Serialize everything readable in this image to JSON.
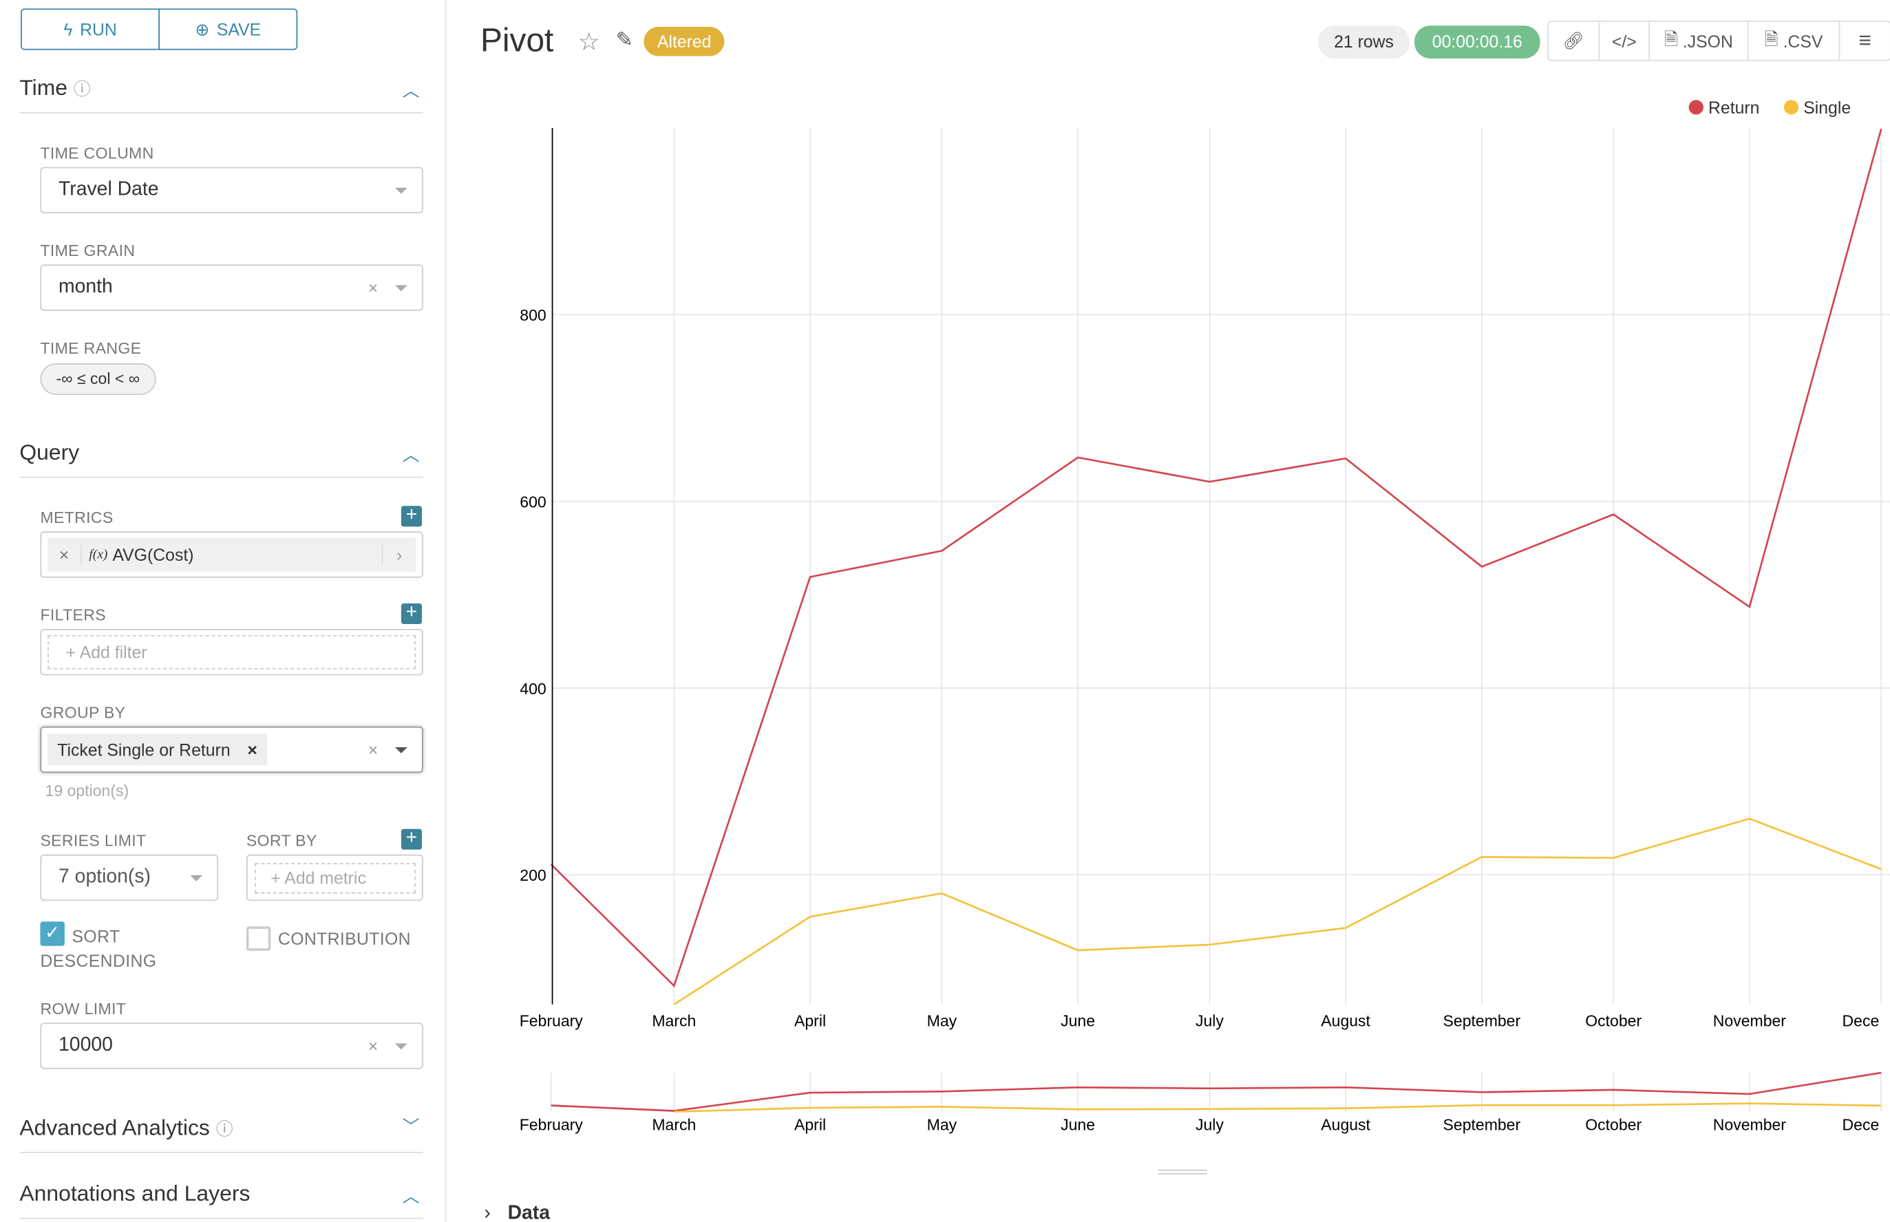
{
  "sidebar": {
    "run_label": "RUN",
    "save_label": "SAVE",
    "time": {
      "title": "Time",
      "time_column_label": "TIME COLUMN",
      "time_column_value": "Travel Date",
      "time_grain_label": "TIME GRAIN",
      "time_grain_value": "month",
      "time_range_label": "TIME RANGE",
      "time_range_value": "-∞ ≤ col < ∞"
    },
    "query": {
      "title": "Query",
      "metrics_label": "METRICS",
      "metric_fn": "f(x)",
      "metric_value": "AVG(Cost)",
      "filters_label": "FILTERS",
      "add_filter": "Add filter",
      "group_by_label": "GROUP BY",
      "group_by_tag": "Ticket Single or Return",
      "group_by_hint": "19 option(s)",
      "series_limit_label": "SERIES LIMIT",
      "series_limit_value": "7 option(s)",
      "sort_by_label": "SORT BY",
      "add_metric": "Add metric",
      "sort_desc_label": "SORT DESCENDING",
      "sort_desc_checked": true,
      "contribution_label": "CONTRIBUTION",
      "contribution_checked": false,
      "row_limit_label": "ROW LIMIT",
      "row_limit_value": "10000"
    },
    "advanced_title": "Advanced Analytics",
    "annotations_title": "Annotations and Layers"
  },
  "header": {
    "title": "Pivot",
    "status_badge": "Altered",
    "rows": "21 rows",
    "timer": "00:00:00.16",
    "json_label": ".JSON",
    "csv_label": ".CSV"
  },
  "data_section": "Data",
  "colors": {
    "accent": "#3a87ad",
    "return": "#d3454f",
    "single": "#f5c13c",
    "timer": "#75c08e",
    "altered": "#e0b23a"
  },
  "chart_data": {
    "type": "line",
    "categories": [
      "February",
      "March",
      "April",
      "May",
      "June",
      "July",
      "August",
      "September",
      "October",
      "November",
      "December"
    ],
    "x_tick_labels": [
      "February",
      "March",
      "April",
      "May",
      "June",
      "July",
      "August",
      "September",
      "October",
      "November",
      "Dece"
    ],
    "series": [
      {
        "name": "Return",
        "values": [
          211,
          81,
          519,
          547,
          647,
          621,
          646,
          530,
          586,
          487,
          999
        ]
      },
      {
        "name": "Single",
        "values": [
          null,
          61,
          155,
          180,
          119,
          125,
          143,
          219,
          218,
          260,
          206
        ]
      }
    ],
    "y_ticks": [
      200,
      400,
      600,
      800
    ],
    "ylim": [
      61,
      1000
    ],
    "grid": true,
    "legend": "top-right"
  }
}
